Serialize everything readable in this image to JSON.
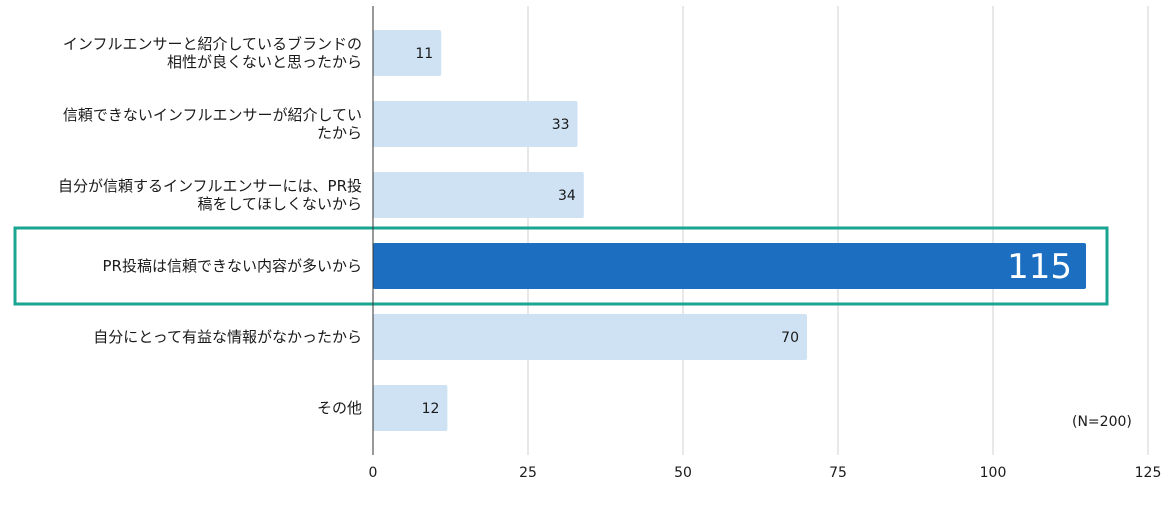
{
  "chart_data": {
    "type": "bar",
    "orientation": "horizontal",
    "categories": [
      [
        "インフルエンサーと紹介しているブランドの",
        "相性が良くないと思ったから"
      ],
      [
        "信頼できないインフルエンサーが紹介してい",
        "たから"
      ],
      [
        "自分が信頼するインフルエンサーには、PR投",
        "稿をしてほしくないから"
      ],
      [
        "PR投稿は信頼できない内容が多いから"
      ],
      [
        "自分にとって有益な情報がなかったから"
      ],
      [
        "その他"
      ]
    ],
    "values": [
      11,
      33,
      34,
      115,
      70,
      12
    ],
    "highlight_index": 3,
    "xlim": [
      0,
      125
    ],
    "xticks": [
      0,
      25,
      50,
      75,
      100,
      125
    ],
    "grid": true,
    "colors": {
      "bar": "#cfe2f3",
      "highlight_bar": "#1c6fc0",
      "highlight_box": "#1aa593",
      "grid": "#d0d0d0",
      "axis": "#333333"
    },
    "note": "(N=200)"
  }
}
